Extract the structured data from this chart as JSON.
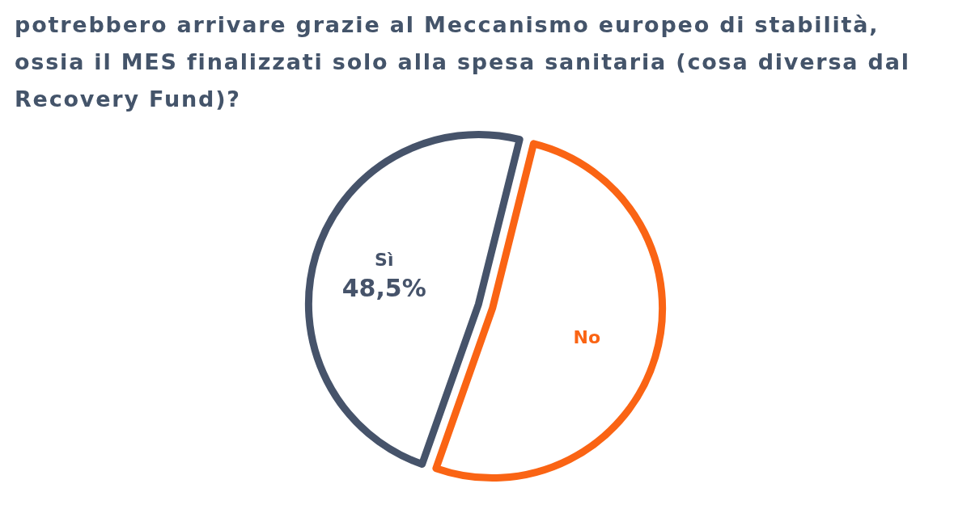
{
  "chart_data": {
    "type": "pie",
    "title": "potrebbero arrivare grazie al Meccanismo europeo di stabilità, ossia il MES finalizzati solo alla spesa sanitaria (cosa diversa dal Recovery Fund)?",
    "categories": [
      "Sì",
      "No"
    ],
    "values": [
      48.5,
      51.5
    ],
    "colors": [
      "#46536a",
      "#fa6414"
    ],
    "value_labels": [
      "48,5%",
      null
    ]
  }
}
